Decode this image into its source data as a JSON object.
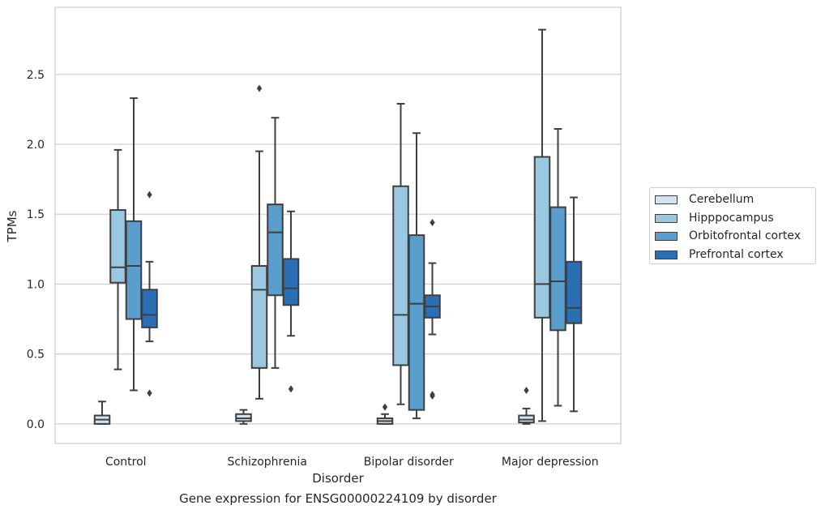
{
  "caption": "Gene expression for ENSG00000224109 by disorder",
  "chart_data": {
    "type": "box",
    "xlabel": "Disorder",
    "ylabel": "TPMs",
    "ylim": [
      -0.14,
      2.98
    ],
    "yticks": [
      0.0,
      0.5,
      1.0,
      1.5,
      2.0,
      2.5
    ],
    "ytick_labels": [
      "0.0",
      "0.5",
      "1.0",
      "1.5",
      "2.0",
      "2.5"
    ],
    "grid": "horizontal",
    "legend_position": "right",
    "categories": [
      "Control",
      "Schizophrenia",
      "Bipolar disorder",
      "Major depression"
    ],
    "series": [
      {
        "name": "Cerebellum",
        "color": "#d1e2f2",
        "boxes": [
          {
            "whislo": 0.0,
            "q1": 0.0,
            "med": 0.03,
            "q3": 0.06,
            "whishi": 0.16,
            "fliers": []
          },
          {
            "whislo": 0.0,
            "q1": 0.02,
            "med": 0.04,
            "q3": 0.07,
            "whishi": 0.1,
            "fliers": []
          },
          {
            "whislo": 0.0,
            "q1": 0.0,
            "med": 0.02,
            "q3": 0.04,
            "whishi": 0.07,
            "fliers": [
              0.12
            ]
          },
          {
            "whislo": 0.0,
            "q1": 0.01,
            "med": 0.03,
            "q3": 0.06,
            "whishi": 0.11,
            "fliers": [
              0.24
            ]
          }
        ]
      },
      {
        "name": "Hipppocampus",
        "color": "#9ac8e0",
        "boxes": [
          {
            "whislo": 0.39,
            "q1": 1.01,
            "med": 1.12,
            "q3": 1.53,
            "whishi": 1.96,
            "fliers": []
          },
          {
            "whislo": 0.18,
            "q1": 0.4,
            "med": 0.96,
            "q3": 1.13,
            "whishi": 1.95,
            "fliers": [
              2.4
            ]
          },
          {
            "whislo": 0.14,
            "q1": 0.42,
            "med": 0.78,
            "q3": 1.7,
            "whishi": 2.29,
            "fliers": []
          },
          {
            "whislo": 0.02,
            "q1": 0.76,
            "med": 1.0,
            "q3": 1.91,
            "whishi": 2.82,
            "fliers": []
          }
        ]
      },
      {
        "name": "Orbitofrontal cortex",
        "color": "#5a9ecd",
        "boxes": [
          {
            "whislo": 0.24,
            "q1": 0.75,
            "med": 1.13,
            "q3": 1.45,
            "whishi": 2.33,
            "fliers": []
          },
          {
            "whislo": 0.4,
            "q1": 0.92,
            "med": 1.37,
            "q3": 1.57,
            "whishi": 2.19,
            "fliers": []
          },
          {
            "whislo": 0.04,
            "q1": 0.1,
            "med": 0.86,
            "q3": 1.35,
            "whishi": 2.08,
            "fliers": []
          },
          {
            "whislo": 0.13,
            "q1": 0.67,
            "med": 1.02,
            "q3": 1.55,
            "whishi": 2.11,
            "fliers": []
          }
        ]
      },
      {
        "name": "Prefrontal cortex",
        "color": "#2a6fb3",
        "boxes": [
          {
            "whislo": 0.59,
            "q1": 0.69,
            "med": 0.78,
            "q3": 0.96,
            "whishi": 1.16,
            "fliers": [
              1.64,
              0.22
            ]
          },
          {
            "whislo": 0.63,
            "q1": 0.85,
            "med": 0.97,
            "q3": 1.18,
            "whishi": 1.52,
            "fliers": [
              0.25
            ]
          },
          {
            "whislo": 0.64,
            "q1": 0.76,
            "med": 0.84,
            "q3": 0.92,
            "whishi": 1.15,
            "fliers": [
              1.44,
              0.2,
              0.21
            ]
          },
          {
            "whislo": 0.09,
            "q1": 0.72,
            "med": 0.83,
            "q3": 1.16,
            "whishi": 1.62,
            "fliers": []
          }
        ]
      }
    ]
  }
}
